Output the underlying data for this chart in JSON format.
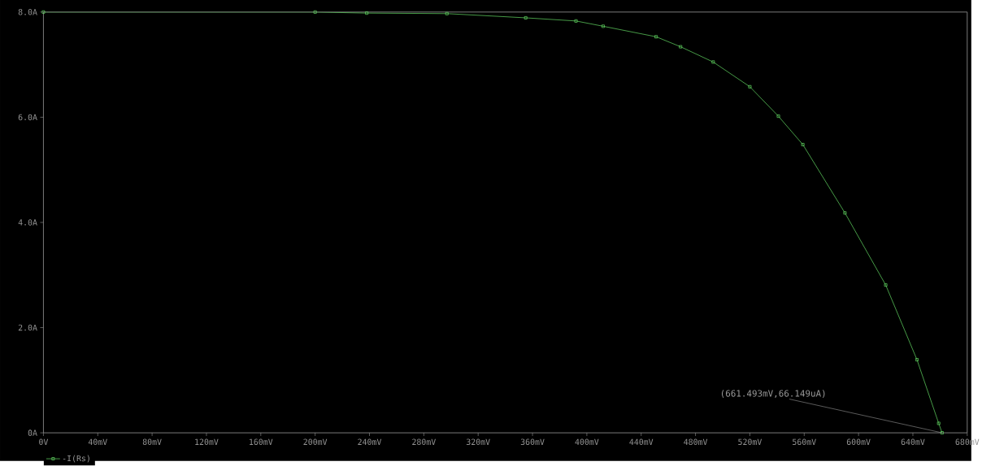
{
  "chart_data": {
    "type": "line",
    "xlim": [
      0,
      680
    ],
    "ylim": [
      0,
      8
    ],
    "xticks": [
      {
        "value": 0,
        "label": "0V"
      },
      {
        "value": 40,
        "label": "40mV"
      },
      {
        "value": 80,
        "label": "80mV"
      },
      {
        "value": 120,
        "label": "120mV"
      },
      {
        "value": 160,
        "label": "160mV"
      },
      {
        "value": 200,
        "label": "200mV"
      },
      {
        "value": 240,
        "label": "240mV"
      },
      {
        "value": 280,
        "label": "280mV"
      },
      {
        "value": 320,
        "label": "320mV"
      },
      {
        "value": 360,
        "label": "360mV"
      },
      {
        "value": 400,
        "label": "400mV"
      },
      {
        "value": 440,
        "label": "440mV"
      },
      {
        "value": 480,
        "label": "480mV"
      },
      {
        "value": 520,
        "label": "520mV"
      },
      {
        "value": 560,
        "label": "560mV"
      },
      {
        "value": 600,
        "label": "600mV"
      },
      {
        "value": 640,
        "label": "640mV"
      },
      {
        "value": 680,
        "label": "680mV"
      }
    ],
    "yticks": [
      {
        "value": 0,
        "label": "0A"
      },
      {
        "value": 2,
        "label": "2.0A"
      },
      {
        "value": 4,
        "label": "4.0A"
      },
      {
        "value": 6,
        "label": "6.0A"
      },
      {
        "value": 8,
        "label": "8.0A"
      }
    ],
    "grid": false,
    "legend": "bottom left",
    "marker": "square",
    "line_style": "solid",
    "series": [
      {
        "name": "-I(Rs)",
        "color": "#66dd66",
        "x": [
          0,
          200,
          238,
          297,
          355,
          392,
          412,
          451,
          469,
          493,
          520,
          541,
          559,
          590,
          620,
          643,
          659,
          661.493
        ],
        "values": [
          8.0,
          8.0,
          7.98,
          7.97,
          7.89,
          7.83,
          7.73,
          7.53,
          7.34,
          7.05,
          6.58,
          6.02,
          5.48,
          4.18,
          2.81,
          1.39,
          0.18,
          6.6149e-05
        ]
      }
    ],
    "annotations": [
      {
        "text": "(661.493mV,66.149uA)",
        "x": 661.493,
        "y": 6.6149e-05
      }
    ]
  }
}
